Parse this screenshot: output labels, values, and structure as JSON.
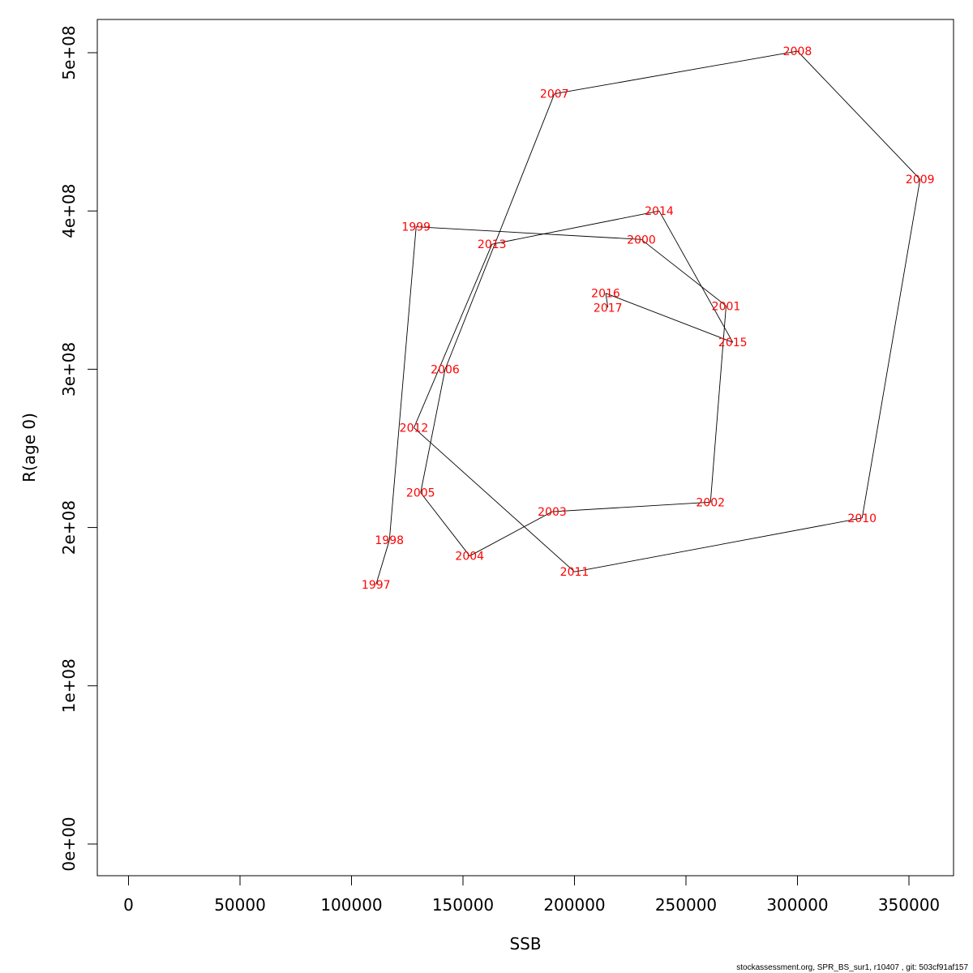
{
  "chart_data": {
    "type": "line",
    "title": "",
    "xlabel": "SSB",
    "ylabel": "R(age 0)",
    "xlim": [
      -14000,
      370000
    ],
    "ylim": [
      -20000000,
      521000000
    ],
    "x_ticks": [
      0,
      50000,
      100000,
      150000,
      200000,
      250000,
      300000,
      350000
    ],
    "x_tick_labels": [
      "0",
      "50000",
      "100000",
      "150000",
      "200000",
      "250000",
      "300000",
      "350000"
    ],
    "y_ticks": [
      0,
      100000000,
      200000000,
      300000000,
      400000000,
      500000000
    ],
    "y_tick_labels": [
      "0e+00",
      "1e+08",
      "2e+08",
      "3e+08",
      "4e+08",
      "5e+08"
    ],
    "grid": false,
    "line_color": "#000000",
    "label_color": "#ff0000",
    "points": [
      {
        "year": "1997",
        "x": 111000,
        "y": 164000000
      },
      {
        "year": "1998",
        "x": 117000,
        "y": 192000000
      },
      {
        "year": "1999",
        "x": 129000,
        "y": 390000000
      },
      {
        "year": "2000",
        "x": 230000,
        "y": 382000000
      },
      {
        "year": "2001",
        "x": 268000,
        "y": 340000000
      },
      {
        "year": "2002",
        "x": 261000,
        "y": 216000000
      },
      {
        "year": "2003",
        "x": 190000,
        "y": 210000000
      },
      {
        "year": "2004",
        "x": 153000,
        "y": 182000000
      },
      {
        "year": "2005",
        "x": 131000,
        "y": 222000000
      },
      {
        "year": "2006",
        "x": 142000,
        "y": 300000000
      },
      {
        "year": "2007",
        "x": 191000,
        "y": 474000000
      },
      {
        "year": "2008",
        "x": 300000,
        "y": 501000000
      },
      {
        "year": "2009",
        "x": 355000,
        "y": 420000000
      },
      {
        "year": "2010",
        "x": 329000,
        "y": 206000000
      },
      {
        "year": "2011",
        "x": 200000,
        "y": 172000000
      },
      {
        "year": "2012",
        "x": 128000,
        "y": 263000000
      },
      {
        "year": "2013",
        "x": 163000,
        "y": 379000000
      },
      {
        "year": "2014",
        "x": 238000,
        "y": 400000000
      },
      {
        "year": "2015",
        "x": 271000,
        "y": 317000000
      },
      {
        "year": "2016",
        "x": 214000,
        "y": 348000000
      },
      {
        "year": "2017",
        "x": 215000,
        "y": 339000000
      }
    ]
  },
  "footer": {
    "text": "stockassessment.org, SPR_BS_sur1, r10407 , git: 503cf91af157"
  }
}
